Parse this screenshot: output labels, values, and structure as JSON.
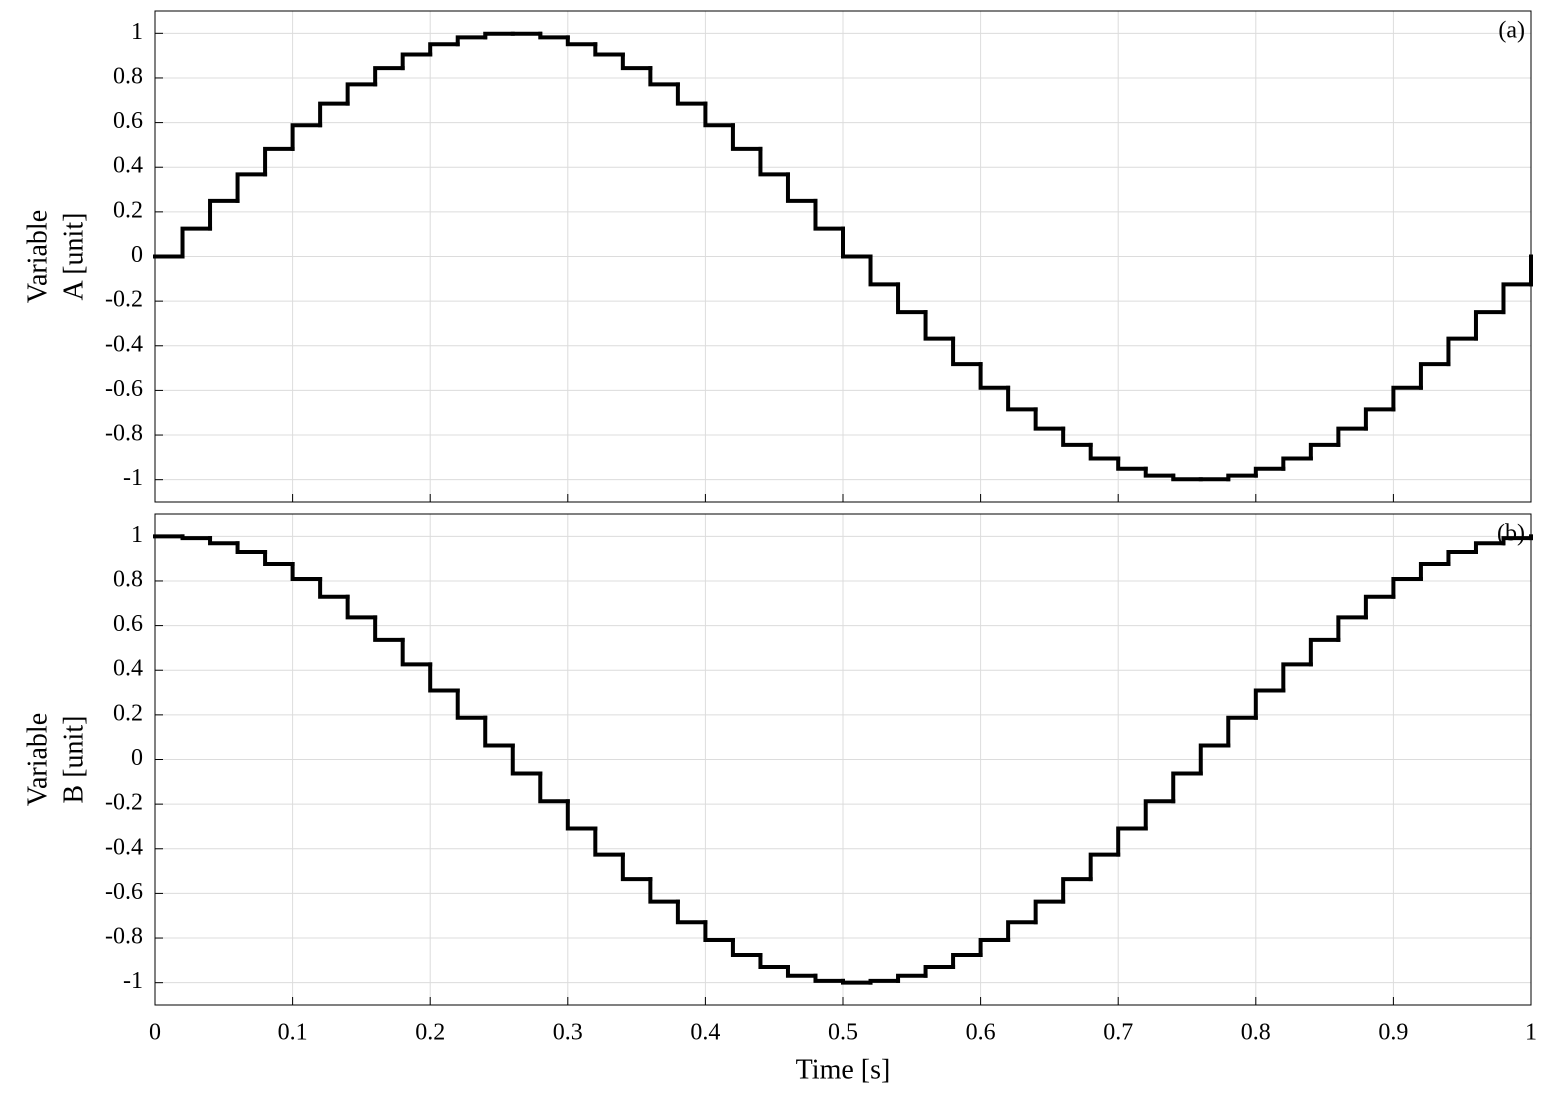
{
  "chart_data": [
    {
      "type": "line",
      "drawstyle": "steps-post",
      "ylabel": [
        "Variable",
        "A [unit]"
      ],
      "annotation": "(a)",
      "color": "#000000",
      "grid": true,
      "x": [
        0,
        0.02,
        0.04,
        0.06,
        0.08,
        0.1,
        0.12,
        0.14,
        0.16,
        0.18,
        0.2,
        0.22,
        0.24,
        0.26,
        0.28,
        0.3,
        0.32,
        0.34,
        0.36,
        0.38,
        0.4,
        0.42,
        0.44,
        0.46,
        0.48,
        0.5,
        0.52,
        0.54,
        0.56,
        0.58,
        0.6,
        0.62,
        0.64,
        0.66,
        0.68,
        0.7,
        0.72,
        0.74,
        0.76,
        0.78,
        0.8,
        0.82,
        0.84,
        0.86,
        0.88,
        0.9,
        0.92,
        0.94,
        0.96,
        0.98,
        1
      ],
      "values": [
        0,
        0.125,
        0.249,
        0.368,
        0.482,
        0.588,
        0.685,
        0.771,
        0.844,
        0.905,
        0.951,
        0.982,
        0.998,
        0.998,
        0.982,
        0.951,
        0.905,
        0.844,
        0.771,
        0.685,
        0.588,
        0.482,
        0.368,
        0.249,
        0.125,
        0,
        -0.125,
        -0.249,
        -0.368,
        -0.482,
        -0.588,
        -0.685,
        -0.771,
        -0.844,
        -0.905,
        -0.951,
        -0.982,
        -0.998,
        -0.998,
        -0.982,
        -0.951,
        -0.905,
        -0.844,
        -0.771,
        -0.685,
        -0.588,
        -0.482,
        -0.368,
        -0.249,
        -0.125,
        0
      ],
      "xlim": [
        0,
        1
      ],
      "xticks": [
        0,
        0.1,
        0.2,
        0.3,
        0.4,
        0.5,
        0.6,
        0.7,
        0.8,
        0.9,
        1
      ],
      "ylim": [
        -1.1,
        1.1
      ],
      "yticks": [
        -1,
        -0.8,
        -0.6,
        -0.4,
        -0.2,
        0,
        0.2,
        0.4,
        0.6,
        0.8,
        1
      ]
    },
    {
      "type": "line",
      "drawstyle": "steps-post",
      "ylabel": [
        "Variable",
        "B [unit]"
      ],
      "xlabel": "Time [s]",
      "annotation": "(b)",
      "color": "#000000",
      "grid": true,
      "x": [
        0,
        0.02,
        0.04,
        0.06,
        0.08,
        0.1,
        0.12,
        0.14,
        0.16,
        0.18,
        0.2,
        0.22,
        0.24,
        0.26,
        0.28,
        0.3,
        0.32,
        0.34,
        0.36,
        0.38,
        0.4,
        0.42,
        0.44,
        0.46,
        0.48,
        0.5,
        0.52,
        0.54,
        0.56,
        0.58,
        0.6,
        0.62,
        0.64,
        0.66,
        0.68,
        0.7,
        0.72,
        0.74,
        0.76,
        0.78,
        0.8,
        0.82,
        0.84,
        0.86,
        0.88,
        0.9,
        0.92,
        0.94,
        0.96,
        0.98,
        1
      ],
      "values": [
        1,
        0.992,
        0.969,
        0.93,
        0.876,
        0.809,
        0.729,
        0.637,
        0.536,
        0.426,
        0.309,
        0.187,
        0.063,
        -0.063,
        -0.187,
        -0.309,
        -0.426,
        -0.536,
        -0.637,
        -0.729,
        -0.809,
        -0.876,
        -0.93,
        -0.969,
        -0.992,
        -1,
        -0.992,
        -0.969,
        -0.93,
        -0.876,
        -0.809,
        -0.729,
        -0.637,
        -0.536,
        -0.426,
        -0.309,
        -0.187,
        -0.063,
        0.063,
        0.187,
        0.309,
        0.426,
        0.536,
        0.637,
        0.729,
        0.809,
        0.876,
        0.93,
        0.969,
        0.992,
        1
      ],
      "xlim": [
        0,
        1
      ],
      "xticks": [
        0,
        0.1,
        0.2,
        0.3,
        0.4,
        0.5,
        0.6,
        0.7,
        0.8,
        0.9,
        1
      ],
      "ylim": [
        -1.1,
        1.1
      ],
      "yticks": [
        -1,
        -0.8,
        -0.6,
        -0.4,
        -0.2,
        0,
        0.2,
        0.4,
        0.6,
        0.8,
        1
      ]
    }
  ]
}
